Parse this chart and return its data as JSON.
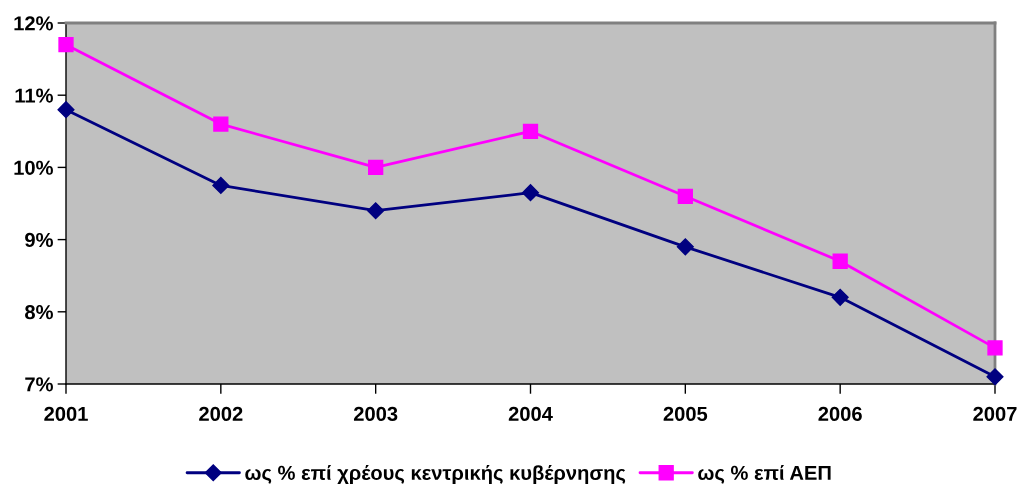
{
  "chart_data": {
    "type": "line",
    "categories": [
      "2001",
      "2002",
      "2003",
      "2004",
      "2005",
      "2006",
      "2007"
    ],
    "series": [
      {
        "name": "ως % επί χρέους κεντρικής κυβέρνησης",
        "color": "#000080",
        "marker": "diamond",
        "values": [
          10.8,
          9.75,
          9.4,
          9.65,
          8.9,
          8.2,
          7.1
        ]
      },
      {
        "name": "ως % επί ΑΕΠ",
        "color": "#ff00ff",
        "marker": "square",
        "values": [
          11.7,
          10.6,
          10.0,
          10.5,
          9.6,
          8.7,
          7.5
        ]
      }
    ],
    "ylim": [
      7,
      12
    ],
    "yticks": [
      {
        "value": 7,
        "label": "7%"
      },
      {
        "value": 8,
        "label": "8%"
      },
      {
        "value": 9,
        "label": "9%"
      },
      {
        "value": 10,
        "label": "10%"
      },
      {
        "value": 11,
        "label": "11%"
      },
      {
        "value": 12,
        "label": "12%"
      }
    ],
    "grid": false,
    "legend": "bottom",
    "line_style": "solid"
  }
}
